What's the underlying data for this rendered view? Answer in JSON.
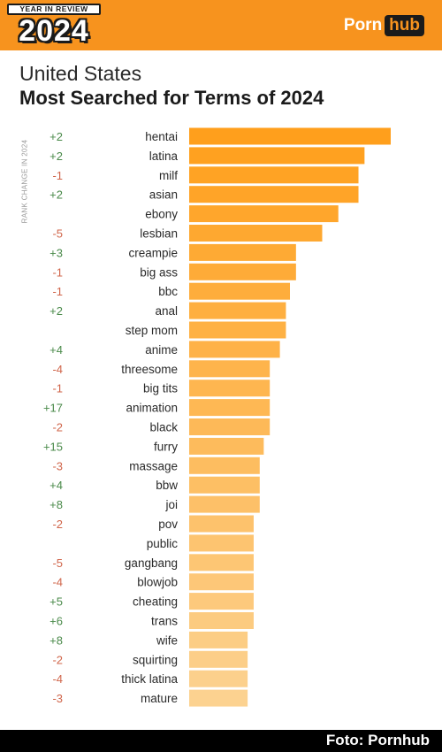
{
  "header": {
    "badge_top": "YEAR IN REVIEW",
    "badge_year": "2024",
    "logo_left": "Porn",
    "logo_right": "hub"
  },
  "region": "United States",
  "title": "Most Searched for Terms of 2024",
  "footer": "Foto: Pornhub",
  "colors": {
    "header_bg": "#f7931e",
    "bar_start": "#ff9f1c",
    "bar_end": "#fcd290",
    "positive_change": "#4a8a4a",
    "negative_change": "#d0654a"
  },
  "chart_data": {
    "type": "bar",
    "orientation": "horizontal",
    "title": "Most Searched for Terms of 2024",
    "ylabel": "RANK CHANGE IN 2024",
    "grid": false,
    "legend": "none",
    "categories": [
      "hentai",
      "latina",
      "milf",
      "asian",
      "ebony",
      "lesbian",
      "creampie",
      "big ass",
      "bbc",
      "anal",
      "step mom",
      "anime",
      "threesome",
      "big tits",
      "animation",
      "black",
      "furry",
      "massage",
      "bbw",
      "joi",
      "pov",
      "public",
      "gangbang",
      "blowjob",
      "cheating",
      "trans",
      "wife",
      "squirting",
      "thick latina",
      "mature"
    ],
    "rank_change": [
      "+2",
      "+2",
      "-1",
      "+2",
      "",
      "-5",
      "+3",
      "-1",
      "-1",
      "+2",
      "",
      "+4",
      "-4",
      "-1",
      "+17",
      "-2",
      "+15",
      "-3",
      "+4",
      "+8",
      "-2",
      "",
      "-5",
      "-4",
      "+5",
      "+6",
      "+8",
      "-2",
      "-4",
      "-3"
    ],
    "values": [
      100,
      87,
      84,
      84,
      74,
      66,
      53,
      53,
      50,
      48,
      48,
      45,
      40,
      40,
      40,
      40,
      37,
      35,
      35,
      35,
      32,
      32,
      32,
      32,
      32,
      32,
      29,
      29,
      29,
      29
    ],
    "xlim": [
      0,
      100
    ]
  }
}
